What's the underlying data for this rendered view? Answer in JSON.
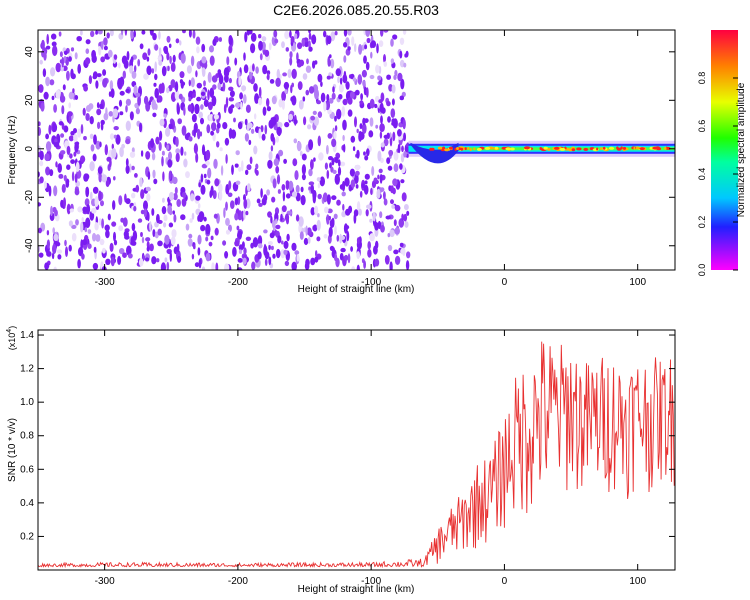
{
  "title": "C2E6.2026.085.20.55.R03",
  "colors": {
    "snr_line": "#e83030",
    "axis": "#000000",
    "bg": "#ffffff"
  },
  "chart_data": [
    {
      "type": "heatmap",
      "name": "spectrogram",
      "xlabel": "Height of straight line (km)",
      "ylabel": "Frequency (Hz)",
      "xlim": [
        -350,
        128
      ],
      "ylim": [
        -50,
        49
      ],
      "xticks": [
        -300,
        -200,
        -100,
        0,
        100
      ],
      "xtick_labels": [
        "-300",
        "-200",
        "-100",
        "0",
        "100"
      ],
      "yticks": [
        -40,
        -20,
        0,
        20,
        40
      ],
      "ytick_labels": [
        "-40",
        "-20",
        "0",
        "20",
        "40"
      ],
      "colorbar": {
        "label": "Normalized spectral amplitude",
        "range": [
          0,
          1
        ],
        "ticks": [
          0.0,
          0.2,
          0.4,
          0.6,
          0.8
        ],
        "tick_labels": [
          "0.0",
          "0.2",
          "0.4",
          "0.6",
          "0.8"
        ],
        "colormap": "rainbow (magenta-blue-cyan-green-yellow-red)"
      },
      "regions": [
        {
          "description": "broadband noise",
          "x_range": [
            -350,
            -72
          ],
          "freq_range": [
            -50,
            49
          ],
          "amplitude_range": [
            0.0,
            0.2
          ]
        },
        {
          "description": "narrowband signal near 0 Hz",
          "x_range": [
            -72,
            128
          ],
          "center_freq": 0,
          "peak_amplitude": 1.0
        }
      ]
    },
    {
      "type": "line",
      "name": "snr",
      "xlabel": "Height of straight line (km)",
      "ylabel": "SNR (10 * v/v)",
      "y_multiplier": "(x10",
      "y_multiplier_exp": "4",
      "y_multiplier_close": ")",
      "xlim": [
        -350,
        128
      ],
      "ylim": [
        0,
        14300
      ],
      "xticks": [
        -300,
        -200,
        -100,
        0,
        100
      ],
      "xtick_labels": [
        "-300",
        "-200",
        "-100",
        "0",
        "100"
      ],
      "yticks": [
        2000,
        4000,
        6000,
        8000,
        10000,
        12000,
        14000
      ],
      "ytick_labels": [
        "0.2",
        "0.4",
        "0.6",
        "0.8",
        "1.0",
        "1.2",
        "1.4"
      ],
      "envelope": {
        "x": [
          -350,
          -300,
          -200,
          -100,
          -60,
          -50,
          -40,
          -30,
          -20,
          -10,
          0,
          10,
          20,
          30,
          40,
          50,
          60,
          70,
          80,
          90,
          100,
          110,
          120,
          128
        ],
        "low": [
          200,
          200,
          200,
          200,
          200,
          300,
          500,
          800,
          1200,
          1600,
          2200,
          2800,
          3000,
          3500,
          4000,
          4500,
          4000,
          4200,
          4500,
          4000,
          4800,
          4500,
          5000,
          4800
        ],
        "high": [
          400,
          450,
          420,
          450,
          700,
          2500,
          3800,
          4800,
          6500,
          7000,
          9500,
          12000,
          13000,
          14300,
          13500,
          13800,
          12500,
          12800,
          13000,
          12500,
          12800,
          12700,
          12700,
          13000
        ]
      }
    }
  ]
}
